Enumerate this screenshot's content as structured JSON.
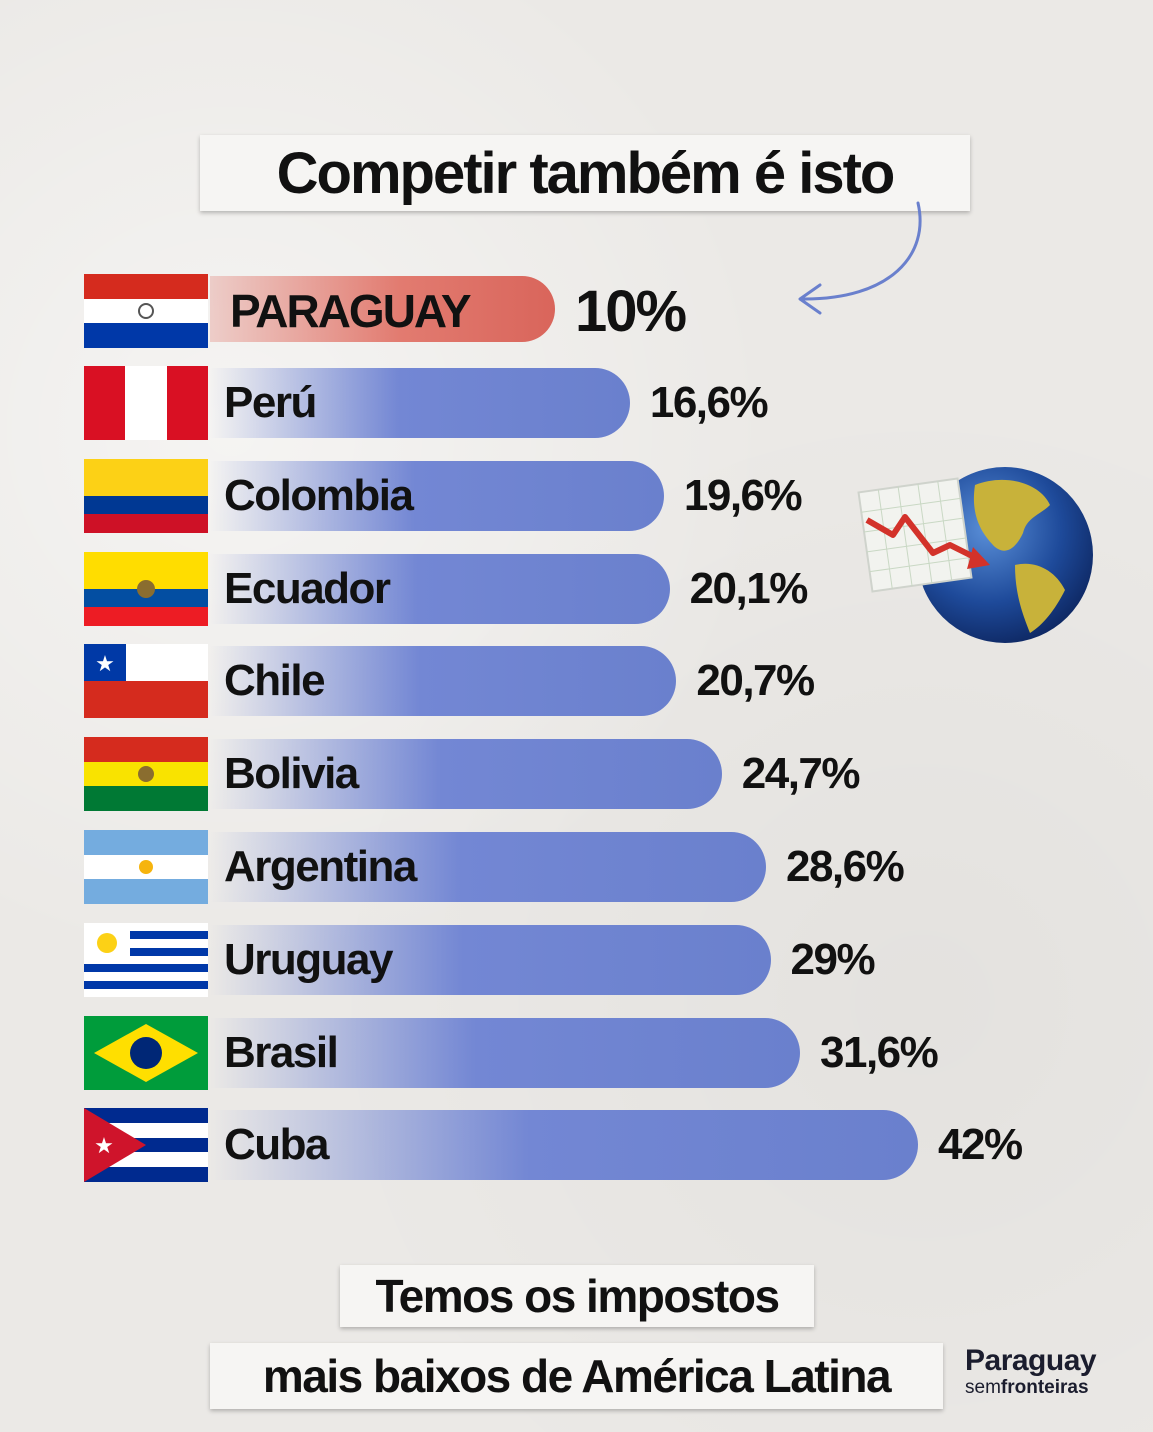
{
  "title": "Competir também é isto",
  "chart_data": {
    "type": "bar",
    "orientation": "horizontal",
    "categories": [
      "PARAGUAY",
      "Perú",
      "Colombia",
      "Ecuador",
      "Chile",
      "Bolivia",
      "Argentina",
      "Uruguay",
      "Brasil",
      "Cuba"
    ],
    "values": [
      10,
      16.6,
      19.6,
      20.1,
      20.7,
      24.7,
      28.6,
      29,
      31.6,
      42
    ],
    "value_labels": [
      "10%",
      "16,6%",
      "19,6%",
      "20,1%",
      "20,7%",
      "24,7%",
      "28,6%",
      "29%",
      "31,6%",
      "42%"
    ],
    "highlight": "PARAGUAY",
    "colors": {
      "bar": "#6a80cd",
      "highlight": "#e27b70"
    }
  },
  "footer": {
    "line1": "Temos os impostos",
    "line2": "mais baixos de América Latina"
  },
  "logo": {
    "top": "Paraguay",
    "bottom_light": "sem",
    "bottom_bold": "fronteiras"
  },
  "icons": [
    "globe-chart-icon",
    "arrow-icon",
    "flag-icons"
  ]
}
